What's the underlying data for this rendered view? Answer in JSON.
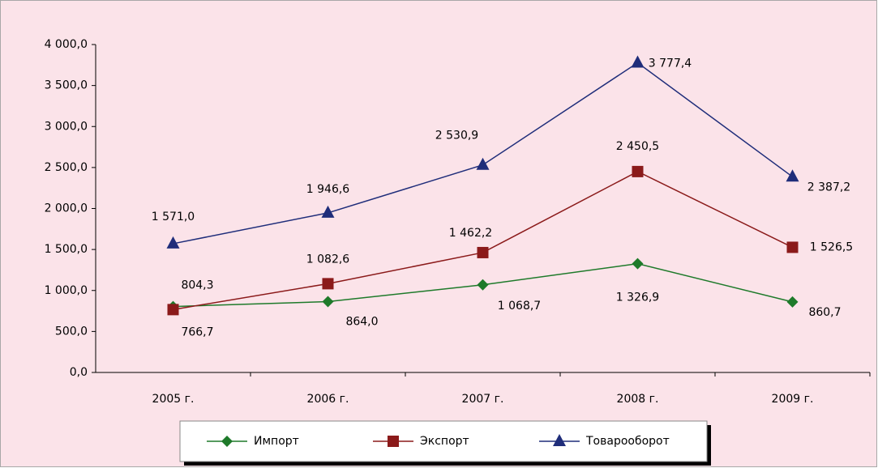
{
  "chart_data": {
    "type": "line",
    "categories": [
      "2005 г.",
      "2006 г.",
      "2007 г.",
      "2008 г.",
      "2009 г."
    ],
    "ylim": [
      0,
      4000
    ],
    "yticks": [
      {
        "value": 0,
        "label": "0,0"
      },
      {
        "value": 500,
        "label": "500,0"
      },
      {
        "value": 1000,
        "label": "1 000,0"
      },
      {
        "value": 1500,
        "label": "1 500,0"
      },
      {
        "value": 2000,
        "label": "2 000,0"
      },
      {
        "value": 2500,
        "label": "2 500,0"
      },
      {
        "value": 3000,
        "label": "3 000,0"
      },
      {
        "value": 3500,
        "label": "3 500,0"
      },
      {
        "value": 4000,
        "label": "4 000,0"
      }
    ],
    "grid": false,
    "legend": "bottom",
    "series": [
      {
        "name": "Импорт",
        "color": "#1e7a2a",
        "marker": "diamond",
        "values": [
          804.3,
          864.0,
          1068.7,
          1326.9,
          860.7
        ],
        "value_labels": [
          "804,3",
          "864,0",
          "1 068,7",
          "1 326,9",
          "860,7"
        ]
      },
      {
        "name": "Экспорт",
        "color": "#8b1a1a",
        "marker": "square",
        "values": [
          766.7,
          1082.6,
          1462.2,
          2450.5,
          1526.5
        ],
        "value_labels": [
          "766,7",
          "1 082,6",
          "1 462,2",
          "2 450,5",
          "1 526,5"
        ]
      },
      {
        "name": "Товарооборот",
        "color": "#1f2d7a",
        "marker": "triangle",
        "values": [
          1571.0,
          1946.6,
          2530.9,
          3777.4,
          2387.2
        ],
        "value_labels": [
          "1 571,0",
          "1 946,6",
          "2 530,9",
          "3 777,4",
          "2 387,2"
        ]
      }
    ]
  }
}
